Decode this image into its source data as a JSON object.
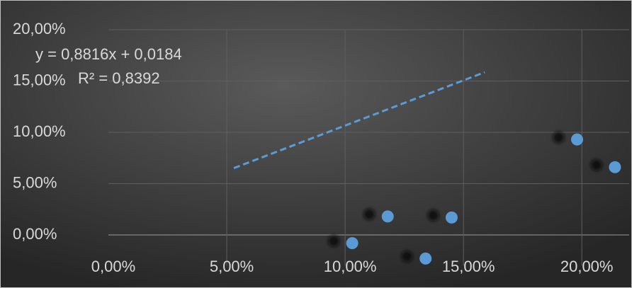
{
  "chart_data": {
    "type": "scatter",
    "x": [
      10.3,
      11.8,
      13.4,
      14.5,
      19.8,
      21.4
    ],
    "series": [
      {
        "color": "#5b9bd5",
        "values": [
          -0.8,
          1.8,
          -2.3,
          1.7,
          9.3,
          6.6
        ]
      }
    ],
    "xlim": [
      0,
      22
    ],
    "ylim": [
      -3,
      20
    ],
    "xticks": [
      {
        "value": 0,
        "label": "0,00%"
      },
      {
        "value": 5,
        "label": "5,00%"
      },
      {
        "value": 10,
        "label": "10,00%"
      },
      {
        "value": 15,
        "label": "15,00%"
      },
      {
        "value": 20,
        "label": "20,00%"
      }
    ],
    "yticks": [
      {
        "value": 0,
        "label": "0,00%"
      },
      {
        "value": 5,
        "label": "5,00%"
      },
      {
        "value": 10,
        "label": "10,00%"
      },
      {
        "value": 15,
        "label": "15,00%"
      },
      {
        "value": 20,
        "label": "20,00%"
      }
    ],
    "grid": true,
    "trendline": {
      "equation": "y = 0,8816x + 0,0184",
      "r_squared": "R² = 0,8392",
      "slope": 0.8816,
      "intercept": 1.84,
      "x_range": [
        5.3,
        15.9
      ],
      "color": "#5b9bd5"
    }
  }
}
